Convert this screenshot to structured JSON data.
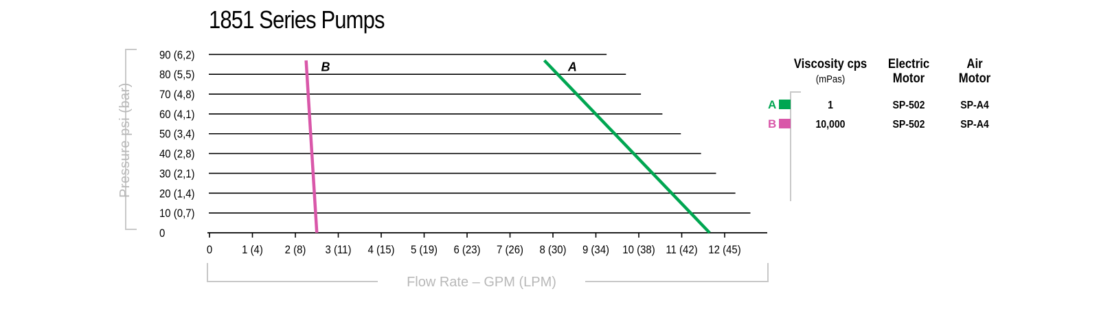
{
  "chart_data": {
    "type": "line",
    "title": "1851 Series Pumps",
    "xlabel": "Flow Rate – GPM (LPM)",
    "ylabel": "Pressure psi (bar)",
    "xlim": [
      0,
      13
    ],
    "ylim": [
      0,
      90
    ],
    "x_ticks": [
      {
        "value": 0,
        "label": "0"
      },
      {
        "value": 1,
        "label": "1 (4)"
      },
      {
        "value": 2,
        "label": "2 (8)"
      },
      {
        "value": 3,
        "label": "3 (11)"
      },
      {
        "value": 4,
        "label": "4 (15)"
      },
      {
        "value": 5,
        "label": "5 (19)"
      },
      {
        "value": 6,
        "label": "6 (23)"
      },
      {
        "value": 7,
        "label": "7 (26)"
      },
      {
        "value": 8,
        "label": "8 (30)"
      },
      {
        "value": 9,
        "label": "9 (34)"
      },
      {
        "value": 10,
        "label": "10 (38)"
      },
      {
        "value": 11,
        "label": "11 (42)"
      },
      {
        "value": 12,
        "label": "12 (45)"
      }
    ],
    "y_ticks": [
      {
        "value": 0,
        "label": "0"
      },
      {
        "value": 10,
        "label": "10  (0,7)"
      },
      {
        "value": 20,
        "label": "20  (1,4)"
      },
      {
        "value": 30,
        "label": "30  (2,1)"
      },
      {
        "value": 40,
        "label": "40  (2,8)"
      },
      {
        "value": 50,
        "label": "50  (3,4)"
      },
      {
        "value": 60,
        "label": "60  (4,1)"
      },
      {
        "value": 70,
        "label": "70  (4,8)"
      },
      {
        "value": 80,
        "label": "80  (5,5)"
      },
      {
        "value": 90,
        "label": "90  (6,2)"
      }
    ],
    "gridline_x_end": [
      {
        "y": 10,
        "x_end": 12.6
      },
      {
        "y": 20,
        "x_end": 12.25
      },
      {
        "y": 30,
        "x_end": 11.8
      },
      {
        "y": 40,
        "x_end": 11.45
      },
      {
        "y": 50,
        "x_end": 10.98
      },
      {
        "y": 60,
        "x_end": 10.55
      },
      {
        "y": 70,
        "x_end": 10.05
      },
      {
        "y": 80,
        "x_end": 9.7
      },
      {
        "y": 90,
        "x_end": 9.25
      }
    ],
    "series": [
      {
        "name": "A",
        "color": "#00a651",
        "points": [
          [
            7.8,
            87
          ],
          [
            11.65,
            0
          ]
        ],
        "label_at": [
          8.35,
          84
        ]
      },
      {
        "name": "B",
        "color": "#d957a9",
        "points": [
          [
            2.25,
            87
          ],
          [
            2.5,
            0
          ]
        ],
        "label_at": [
          2.6,
          84
        ]
      }
    ],
    "legend": {
      "placement": "right",
      "headers": {
        "viscosity": "Viscosity cps",
        "viscosity_unit": "(mPas)",
        "electric_1": "Electric",
        "electric_2": "Motor",
        "air_1": "Air",
        "air_2": "Motor"
      },
      "rows": [
        {
          "key": "A",
          "color": "#00a651",
          "viscosity": "1",
          "electric": "SP-502",
          "air": "SP-A4"
        },
        {
          "key": "B",
          "color": "#d957a9",
          "viscosity": "10,000",
          "electric": "SP-502",
          "air": "SP-A4"
        }
      ]
    }
  }
}
